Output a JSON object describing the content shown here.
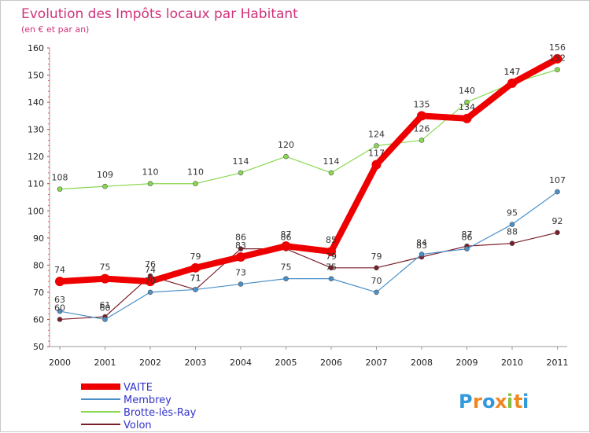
{
  "chart_data": {
    "type": "line",
    "title": "Evolution des Impôts locaux par Habitant",
    "subtitle": "(en € et par an)",
    "xlabel": "",
    "ylabel": "",
    "categories": [
      "2000",
      "2001",
      "2002",
      "2003",
      "2004",
      "2005",
      "2006",
      "2007",
      "2008",
      "2009",
      "2010",
      "2011"
    ],
    "ylim": [
      50,
      160
    ],
    "yticks": [
      50,
      60,
      70,
      80,
      90,
      100,
      110,
      120,
      130,
      140,
      150,
      160
    ],
    "grid": false,
    "legend_position": "bottom-left",
    "series": [
      {
        "name": "VAITE",
        "color": "#ee0000",
        "values": [
          74,
          75,
          74,
          79,
          83,
          87,
          85,
          117,
          135,
          134,
          147,
          156
        ]
      },
      {
        "name": "Membrey",
        "color": "#4a90c8",
        "values": [
          63,
          60,
          70,
          71,
          73,
          75,
          75,
          70,
          84,
          86,
          95,
          107
        ]
      },
      {
        "name": "Brotte-lès-Ray",
        "color": "#88d850",
        "values": [
          108,
          109,
          110,
          110,
          114,
          120,
          114,
          124,
          126,
          140,
          147,
          152
        ]
      },
      {
        "name": "Volon",
        "color": "#7a1e2a",
        "values": [
          60,
          61,
          76,
          71,
          86,
          86,
          79,
          79,
          83,
          87,
          88,
          92
        ]
      }
    ]
  },
  "logo": {
    "text": "Proxiti",
    "letters": [
      "P",
      "r",
      "o",
      "x",
      "i",
      "t",
      "i"
    ],
    "colors": [
      "#3399dd",
      "#ee8822",
      "#3399dd",
      "#ee8822",
      "#88c040",
      "#ee8822",
      "#3399dd"
    ]
  }
}
